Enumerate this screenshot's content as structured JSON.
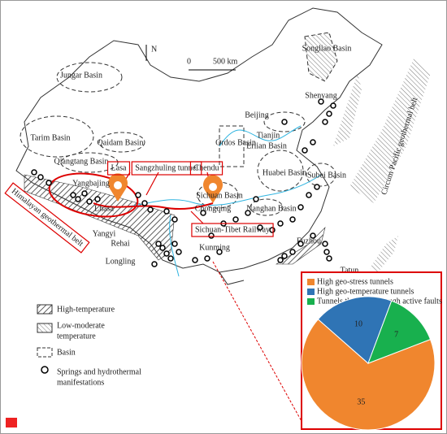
{
  "map": {
    "north": "N",
    "scale_labels": [
      "0",
      "500 km"
    ],
    "place_labels": [
      "Jungar Basin",
      "Tarim Basin",
      "Qaidam Basin",
      "Qiangtang Basin",
      "Ordos Basin",
      "Erlian Basin",
      "Songliao Basin",
      "Shenyang",
      "Beijing",
      "Tianjin",
      "Huabei Basin",
      "Subei Basin",
      "Sichuan Basin",
      "Chongqing",
      "Nanghan Basin",
      "Fuzhou",
      "Tatun",
      "Kunming",
      "Rehai",
      "Longling",
      "Yangyi",
      "Lhasa",
      "Yangbajing"
    ],
    "boxed_labels": [
      "Lasa",
      "Sangzhuling tunnel",
      "Chendu",
      "Sichuan-Tibet Railway"
    ],
    "belt_labels": [
      "Himalayan geothermal belt",
      "Circum Pacific geothermal belt"
    ],
    "legend": [
      [
        "High-temperature"
      ],
      [
        "Low-moderate",
        "temperature"
      ],
      [
        "Basin"
      ],
      [
        "Springs and hydrothermal",
        "manifestations"
      ]
    ]
  },
  "chart_data": {
    "type": "pie",
    "series": [
      {
        "name": "High geo-stress tunnels",
        "color": "#f0862e",
        "values": [
          35
        ]
      },
      {
        "name": "High geo-temperature tunnels",
        "color": "#2f74b5",
        "values": [
          10
        ]
      },
      {
        "name": "Tunnels that pass through active faults",
        "color": "#18b04e",
        "values": [
          7
        ]
      }
    ]
  }
}
